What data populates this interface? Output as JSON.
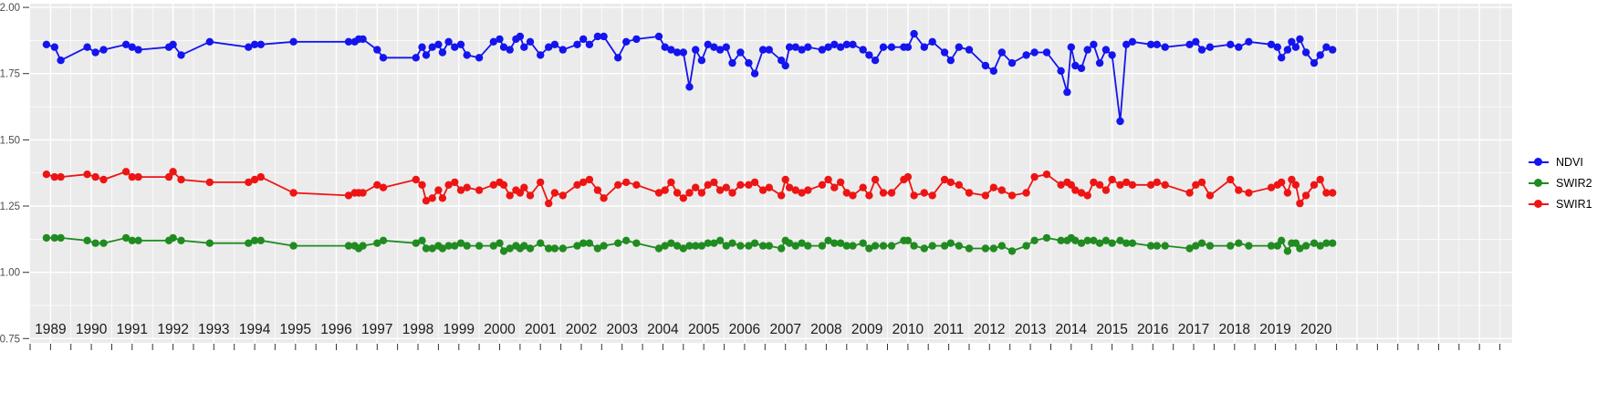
{
  "chart": {
    "background": "#FFFFFF",
    "panel_bg": "#EBEBEB",
    "grid_color": "#FFFFFF",
    "tick_color": "#333333",
    "y_label_color": "#4D4D4D",
    "x_label_color": "#1A1A1A"
  },
  "chart_data": {
    "type": "line",
    "title": "",
    "xlabel": "",
    "ylabel": "",
    "grid": true,
    "panel_bg": "#EBEBEB",
    "ylim": [
      0.75,
      2.0
    ],
    "xlim": [
      1988.5,
      2024.8
    ],
    "y_tick_values": [
      2.0,
      1.75,
      1.5,
      1.25,
      1.0,
      0.75
    ],
    "y_tick_labels": [
      "2.00",
      "1.75",
      "1.50",
      "1.25",
      "1.00",
      "0.75"
    ],
    "x_tick_labels": [
      "1989",
      "1990",
      "1991",
      "1992",
      "1993",
      "1994",
      "1995",
      "1996",
      "1997",
      "1998",
      "1999",
      "2000",
      "2001",
      "2002",
      "2003",
      "2004",
      "2005",
      "2006",
      "2007",
      "2008",
      "2009",
      "2010",
      "2011",
      "2012",
      "2013",
      "2014",
      "2015",
      "2016",
      "2017",
      "2018",
      "2019",
      "2020"
    ],
    "legend": {
      "position": "right",
      "entries": [
        {
          "label": "NDVI",
          "color": "#1414EE"
        },
        {
          "label": "SWIR2",
          "color": "#208B20"
        },
        {
          "label": "SWIR1",
          "color": "#EE1414"
        }
      ]
    },
    "x": [
      1988.9,
      1989.1,
      1989.25,
      1989.9,
      1990.1,
      1990.3,
      1990.85,
      1991.0,
      1991.15,
      1991.9,
      1992.0,
      1992.2,
      1992.9,
      1993.85,
      1994.0,
      1994.15,
      1994.95,
      1996.3,
      1996.45,
      1996.55,
      1996.65,
      1997.0,
      1997.15,
      1997.95,
      1998.1,
      1998.2,
      1998.35,
      1998.5,
      1998.6,
      1998.75,
      1998.9,
      1999.05,
      1999.2,
      1999.5,
      1999.85,
      2000.0,
      2000.1,
      2000.25,
      2000.4,
      2000.5,
      2000.6,
      2000.75,
      2001.0,
      2001.2,
      2001.35,
      2001.55,
      2001.9,
      2002.05,
      2002.2,
      2002.4,
      2002.55,
      2002.9,
      2003.1,
      2003.35,
      2003.9,
      2004.05,
      2004.2,
      2004.35,
      2004.5,
      2004.65,
      2004.8,
      2004.95,
      2005.1,
      2005.25,
      2005.4,
      2005.55,
      2005.7,
      2005.9,
      2006.1,
      2006.25,
      2006.45,
      2006.6,
      2006.9,
      2007.0,
      2007.1,
      2007.25,
      2007.4,
      2007.55,
      2007.9,
      2008.05,
      2008.2,
      2008.35,
      2008.5,
      2008.65,
      2008.9,
      2009.05,
      2009.2,
      2009.4,
      2009.6,
      2009.9,
      2010.0,
      2010.15,
      2010.4,
      2010.6,
      2010.9,
      2011.05,
      2011.25,
      2011.5,
      2011.9,
      2012.1,
      2012.3,
      2012.55,
      2012.9,
      2013.1,
      2013.4,
      2013.75,
      2013.9,
      2014.0,
      2014.1,
      2014.25,
      2014.4,
      2014.55,
      2014.7,
      2014.85,
      2015.0,
      2015.2,
      2015.35,
      2015.5,
      2015.95,
      2016.1,
      2016.3,
      2016.9,
      2017.05,
      2017.2,
      2017.4,
      2017.9,
      2018.1,
      2018.35,
      2018.9,
      2019.05,
      2019.15,
      2019.3,
      2019.4,
      2019.5,
      2019.6,
      2019.75,
      2019.95,
      2020.1,
      2020.25,
      2020.4
    ],
    "series": [
      {
        "name": "NDVI",
        "color": "#1414EE",
        "values": [
          1.86,
          1.85,
          1.8,
          1.85,
          1.83,
          1.84,
          1.86,
          1.85,
          1.84,
          1.85,
          1.86,
          1.82,
          1.87,
          1.85,
          1.86,
          1.86,
          1.87,
          1.87,
          1.87,
          1.88,
          1.88,
          1.84,
          1.81,
          1.81,
          1.85,
          1.82,
          1.85,
          1.86,
          1.83,
          1.87,
          1.85,
          1.86,
          1.82,
          1.81,
          1.87,
          1.88,
          1.85,
          1.84,
          1.88,
          1.89,
          1.85,
          1.87,
          1.82,
          1.85,
          1.86,
          1.84,
          1.86,
          1.88,
          1.86,
          1.89,
          1.89,
          1.81,
          1.87,
          1.88,
          1.89,
          1.85,
          1.84,
          1.83,
          1.83,
          1.7,
          1.84,
          1.8,
          1.86,
          1.85,
          1.84,
          1.85,
          1.79,
          1.83,
          1.79,
          1.75,
          1.84,
          1.84,
          1.8,
          1.78,
          1.85,
          1.85,
          1.84,
          1.85,
          1.84,
          1.85,
          1.86,
          1.85,
          1.86,
          1.86,
          1.84,
          1.82,
          1.8,
          1.85,
          1.85,
          1.85,
          1.85,
          1.9,
          1.85,
          1.87,
          1.83,
          1.8,
          1.85,
          1.84,
          1.78,
          1.76,
          1.83,
          1.79,
          1.82,
          1.83,
          1.83,
          1.76,
          1.68,
          1.85,
          1.78,
          1.77,
          1.84,
          1.86,
          1.79,
          1.84,
          1.82,
          1.57,
          1.86,
          1.87,
          1.86,
          1.86,
          1.85,
          1.86,
          1.87,
          1.84,
          1.85,
          1.86,
          1.85,
          1.87,
          1.86,
          1.85,
          1.81,
          1.84,
          1.87,
          1.85,
          1.88,
          1.83,
          1.79,
          1.82,
          1.85,
          1.84
        ]
      },
      {
        "name": "SWIR2",
        "color": "#208B20",
        "values": [
          1.13,
          1.13,
          1.13,
          1.12,
          1.11,
          1.11,
          1.13,
          1.12,
          1.12,
          1.12,
          1.13,
          1.12,
          1.11,
          1.11,
          1.12,
          1.12,
          1.1,
          1.1,
          1.1,
          1.09,
          1.1,
          1.11,
          1.12,
          1.11,
          1.12,
          1.09,
          1.09,
          1.1,
          1.09,
          1.1,
          1.1,
          1.11,
          1.1,
          1.1,
          1.1,
          1.11,
          1.08,
          1.09,
          1.1,
          1.09,
          1.1,
          1.09,
          1.11,
          1.09,
          1.09,
          1.09,
          1.1,
          1.11,
          1.11,
          1.09,
          1.1,
          1.11,
          1.12,
          1.11,
          1.09,
          1.1,
          1.11,
          1.1,
          1.09,
          1.1,
          1.1,
          1.1,
          1.11,
          1.11,
          1.12,
          1.1,
          1.11,
          1.1,
          1.1,
          1.11,
          1.1,
          1.1,
          1.09,
          1.12,
          1.11,
          1.1,
          1.11,
          1.1,
          1.1,
          1.12,
          1.11,
          1.11,
          1.1,
          1.1,
          1.11,
          1.09,
          1.1,
          1.1,
          1.1,
          1.12,
          1.12,
          1.1,
          1.09,
          1.1,
          1.1,
          1.11,
          1.1,
          1.09,
          1.09,
          1.09,
          1.1,
          1.08,
          1.1,
          1.12,
          1.13,
          1.12,
          1.12,
          1.13,
          1.12,
          1.11,
          1.12,
          1.12,
          1.11,
          1.12,
          1.11,
          1.12,
          1.11,
          1.11,
          1.1,
          1.1,
          1.1,
          1.09,
          1.1,
          1.11,
          1.1,
          1.1,
          1.11,
          1.1,
          1.1,
          1.1,
          1.12,
          1.08,
          1.11,
          1.11,
          1.09,
          1.1,
          1.11,
          1.1,
          1.11,
          1.11
        ]
      },
      {
        "name": "SWIR1",
        "color": "#EE1414",
        "values": [
          1.37,
          1.36,
          1.36,
          1.37,
          1.36,
          1.35,
          1.38,
          1.36,
          1.36,
          1.36,
          1.38,
          1.35,
          1.34,
          1.34,
          1.35,
          1.36,
          1.3,
          1.29,
          1.3,
          1.3,
          1.3,
          1.33,
          1.32,
          1.35,
          1.33,
          1.27,
          1.28,
          1.31,
          1.28,
          1.33,
          1.34,
          1.31,
          1.32,
          1.31,
          1.33,
          1.34,
          1.33,
          1.29,
          1.31,
          1.3,
          1.32,
          1.29,
          1.34,
          1.26,
          1.3,
          1.29,
          1.33,
          1.34,
          1.35,
          1.31,
          1.28,
          1.33,
          1.34,
          1.33,
          1.3,
          1.31,
          1.34,
          1.3,
          1.28,
          1.3,
          1.32,
          1.3,
          1.33,
          1.34,
          1.31,
          1.32,
          1.3,
          1.33,
          1.33,
          1.34,
          1.31,
          1.32,
          1.29,
          1.35,
          1.32,
          1.31,
          1.3,
          1.31,
          1.33,
          1.35,
          1.32,
          1.34,
          1.3,
          1.29,
          1.32,
          1.29,
          1.35,
          1.3,
          1.3,
          1.35,
          1.36,
          1.29,
          1.3,
          1.29,
          1.35,
          1.34,
          1.33,
          1.3,
          1.29,
          1.32,
          1.31,
          1.29,
          1.3,
          1.36,
          1.37,
          1.33,
          1.34,
          1.33,
          1.31,
          1.3,
          1.29,
          1.34,
          1.33,
          1.31,
          1.35,
          1.33,
          1.34,
          1.33,
          1.33,
          1.34,
          1.33,
          1.3,
          1.33,
          1.34,
          1.29,
          1.35,
          1.31,
          1.3,
          1.32,
          1.33,
          1.34,
          1.3,
          1.35,
          1.33,
          1.26,
          1.29,
          1.33,
          1.35,
          1.3,
          1.3
        ]
      }
    ]
  }
}
